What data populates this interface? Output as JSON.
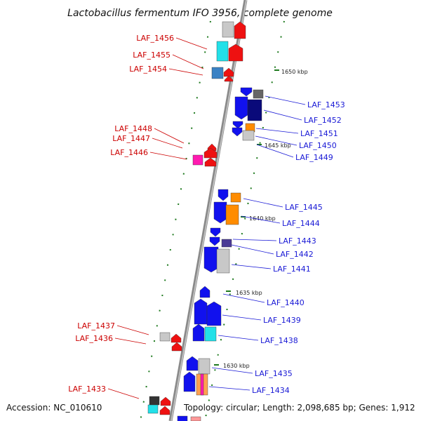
{
  "title": "Lactobacillus fermentum IFO 3956, complete genome",
  "footer": {
    "accession": "Accession: NC_010610",
    "topology": "Topology: circular; Length: 2,098,685 bp; Genes: 1,912"
  },
  "colors": {
    "strand_right_label": "#1a1ad6",
    "strand_left_label": "#cc0000",
    "tick": "#1f7a1f",
    "backbone": "#8a8a8a"
  },
  "scale_labels": [
    "1650 kbp",
    "1645 kbp",
    "1640 kbp",
    "1635 kbp",
    "1630 kbp"
  ],
  "genes_right": [
    "LAF_1453",
    "LAF_1452",
    "LAF_1451",
    "LAF_1450",
    "LAF_1449",
    "LAF_1445",
    "LAF_1444",
    "LAF_1443",
    "LAF_1442",
    "LAF_1441",
    "LAF_1440",
    "LAF_1439",
    "LAF_1438",
    "LAF_1435",
    "LAF_1434"
  ],
  "genes_left": [
    "LAF_1456",
    "LAF_1455",
    "LAF_1454",
    "LAF_1448",
    "LAF_1447",
    "LAF_1446",
    "LAF_1437",
    "LAF_1436",
    "LAF_1433"
  ]
}
